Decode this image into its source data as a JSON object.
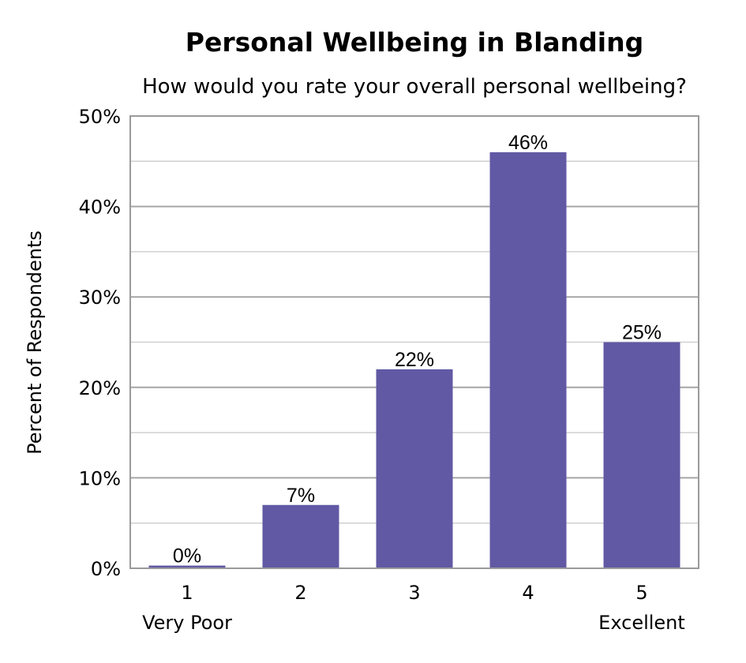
{
  "chart_data": {
    "type": "bar",
    "title": "Personal Wellbeing in Blanding",
    "subtitle": "How would you rate your overall personal wellbeing?",
    "ylabel": "Percent of Respondents",
    "xlabel": "",
    "categories": [
      "1",
      "2",
      "3",
      "4",
      "5"
    ],
    "category_sublabels": [
      "Very Poor",
      "",
      "",
      "",
      "Excellent"
    ],
    "values": [
      0.3,
      7,
      22,
      46,
      25
    ],
    "data_labels": [
      "0%",
      "7%",
      "22%",
      "46%",
      "25%"
    ],
    "ylim": [
      0,
      50
    ],
    "yticks": [
      0,
      10,
      20,
      30,
      40,
      50
    ],
    "ytick_labels": [
      "0%",
      "10%",
      "20%",
      "30%",
      "40%",
      "50%"
    ],
    "grid": true,
    "legend": "none",
    "bar_color": "#6159a4"
  }
}
